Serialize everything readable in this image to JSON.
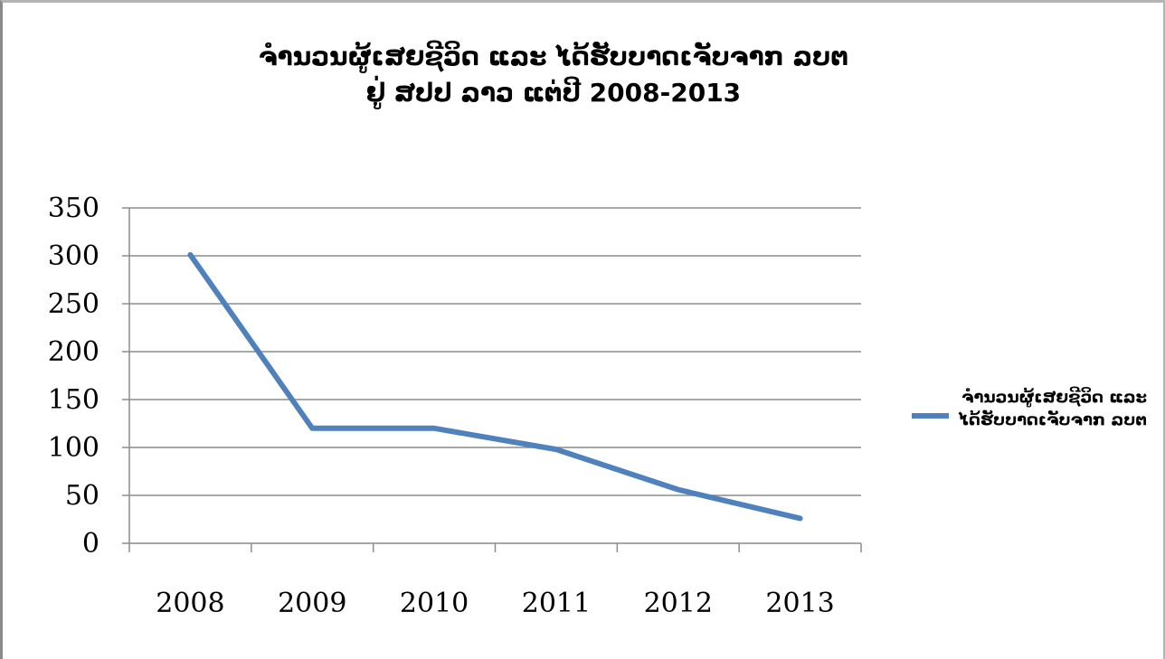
{
  "chart_data": {
    "type": "line",
    "title_lines": [
      "ຈຳນວນຜູ້ເສຍຊີວິດ ແລະ ໄດ້ຮັບບາດເຈັບຈາກ ລບຕ",
      "ຢູ່ ສປປ ລາວ ແຕ່ປີ 2008-2013"
    ],
    "categories": [
      "2008",
      "2009",
      "2010",
      "2011",
      "2012",
      "2013"
    ],
    "series": [
      {
        "name_lines": [
          "ຈຳນວນຜູ້ເສຍຊີວິດ ແລະ",
          "ໄດ້ຮັບບາດເຈັບຈາກ ລບຕ"
        ],
        "values": [
          301,
          120,
          120,
          98,
          56,
          26
        ],
        "color": "#4f81bd"
      }
    ],
    "y_ticks": [
      "0",
      "50",
      "100",
      "150",
      "200",
      "250",
      "300",
      "350"
    ],
    "ylim": [
      0,
      350
    ],
    "grid": true,
    "legend_position": "right"
  }
}
